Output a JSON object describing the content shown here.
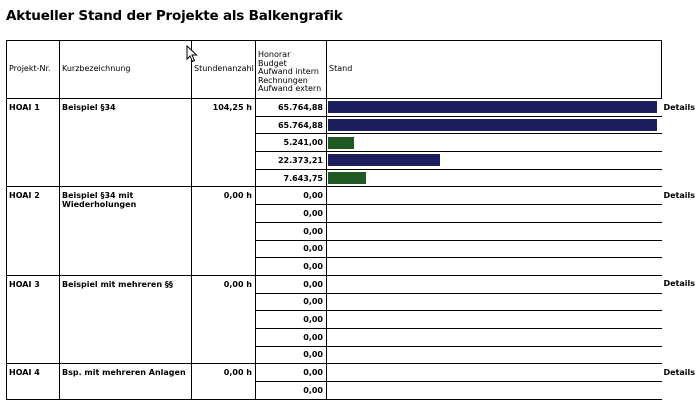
{
  "title": "Aktueller Stand der Projekte als Balkengrafik",
  "headers": {
    "project": "Projekt-Nr.",
    "description": "Kurzbezeichnung",
    "hours": "Stundenanzahl",
    "money_lines": [
      "Honorar",
      "Budget",
      "Aufwand intern",
      "Rechnungen",
      "Aufwand extern"
    ],
    "status": "Stand"
  },
  "colors": {
    "bar_blue": "#1b1f5e",
    "bar_green": "#1e5a22"
  },
  "details_label": "Details",
  "projects": [
    {
      "id": "HOAI 1",
      "name": "Beispiel §34",
      "hours": "104,25 h",
      "values": [
        {
          "text": "65.764,88",
          "fraction": 1.0,
          "color": "blue"
        },
        {
          "text": "65.764,88",
          "fraction": 1.0,
          "color": "blue"
        },
        {
          "text": "5.241,00",
          "fraction": 0.0797,
          "color": "green"
        },
        {
          "text": "22.373,21",
          "fraction": 0.3402,
          "color": "blue"
        },
        {
          "text": "7.643,75",
          "fraction": 0.1162,
          "color": "green"
        }
      ]
    },
    {
      "id": "HOAI 2",
      "name": "Beispiel §34 mit Wiederholungen",
      "hours": "0,00 h",
      "values": [
        {
          "text": "0,00",
          "fraction": 0
        },
        {
          "text": "0,00",
          "fraction": 0
        },
        {
          "text": "0,00",
          "fraction": 0
        },
        {
          "text": "0,00",
          "fraction": 0
        },
        {
          "text": "0,00",
          "fraction": 0
        }
      ]
    },
    {
      "id": "HOAI 3",
      "name": "Beispiel mit mehreren §§",
      "hours": "0,00 h",
      "values": [
        {
          "text": "0,00",
          "fraction": 0
        },
        {
          "text": "0,00",
          "fraction": 0
        },
        {
          "text": "0,00",
          "fraction": 0
        },
        {
          "text": "0,00",
          "fraction": 0
        },
        {
          "text": "0,00",
          "fraction": 0
        }
      ]
    },
    {
      "id": "HOAI 4",
      "name": "Bsp. mit mehreren Anlagen",
      "hours": "0,00 h",
      "values": [
        {
          "text": "0,00",
          "fraction": 0
        },
        {
          "text": "0,00",
          "fraction": 0
        }
      ]
    }
  ]
}
